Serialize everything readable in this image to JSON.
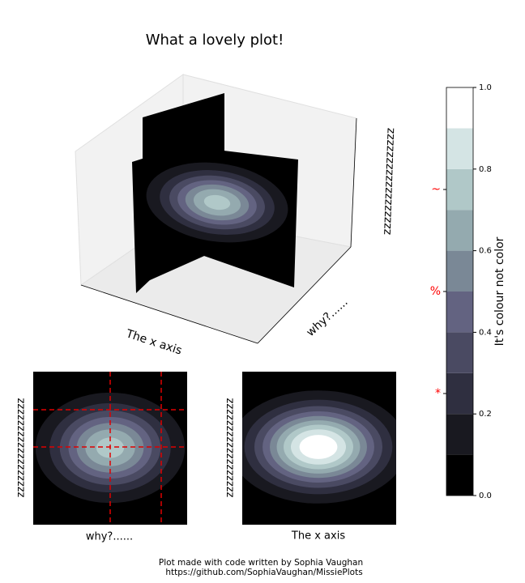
{
  "chart_data": {
    "type": "contour",
    "title": "What a lovely plot!",
    "axes3d": {
      "xlabel": "The x axis",
      "ylabel": "why?......",
      "zlabel": "zzzzzzzzzzzzzzzzzz"
    },
    "panels": [
      {
        "xlabel": "why?......",
        "ylabel": "zzzzzzzzzzzzzzzzzz"
      },
      {
        "xlabel": "The x axis",
        "ylabel": "zzzzzzzzzzzzzzzzzz"
      }
    ],
    "colorbar": {
      "label": "It's colour not color",
      "levels": [
        0,
        0.1,
        0.2,
        0.3,
        0.4,
        0.5,
        0.6,
        0.7,
        0.8,
        0.9,
        1.0
      ],
      "colors": [
        "#000000",
        "#191920",
        "#2f2f40",
        "#4a4a62",
        "#636381",
        "#7a8896",
        "#94aaaf",
        "#b0c8c8",
        "#d4e4e4",
        "#ffffff"
      ],
      "ylim": [
        0,
        1
      ],
      "yticks": [
        {
          "value": 0,
          "label": "0.0"
        },
        0.2,
        0.4,
        0.6,
        0.8,
        {
          "value": 1,
          "label": "1.0"
        }
      ],
      "annotations": [
        {
          "value": 0.75,
          "label": "~"
        },
        {
          "value": 0.5,
          "label": "%"
        },
        {
          "value": 0.25,
          "label": "*"
        }
      ],
      "annotation_color": "#ff0000"
    },
    "footer": [
      "Plot made with code written by Sophia Vaughan",
      "https://github.com/SophiaVaughan/MissiePlots"
    ]
  }
}
